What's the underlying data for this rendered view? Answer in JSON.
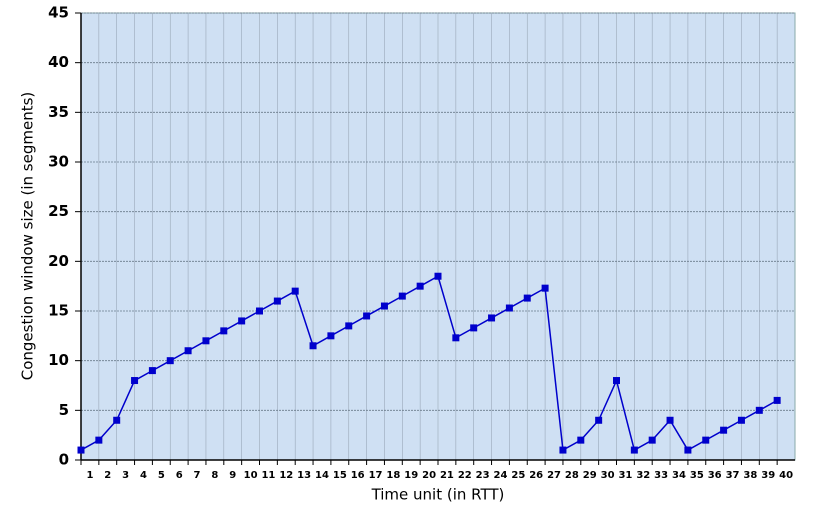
{
  "chart_data": {
    "type": "line",
    "x_label": "Time unit (in RTT)",
    "y_label": "Congestion window size (in segments)",
    "categories": [
      "1",
      "2",
      "3",
      "4",
      "5",
      "6",
      "7",
      "8",
      "9",
      "10",
      "11",
      "12",
      "13",
      "14",
      "15",
      "16",
      "17",
      "18",
      "19",
      "20",
      "21",
      "22",
      "23",
      "24",
      "25",
      "26",
      "27",
      "28",
      "29",
      "30",
      "31",
      "32",
      "33",
      "34",
      "35",
      "36",
      "37",
      "38",
      "39",
      "40"
    ],
    "series": [
      {
        "color": "#0000cc",
        "values": [
          1,
          2,
          4,
          8,
          9,
          10,
          11,
          12,
          13,
          14,
          15,
          16,
          17,
          11.5,
          12.5,
          13.5,
          14.5,
          15.5,
          16.5,
          17.5,
          18.5,
          12.3,
          13.3,
          14.3,
          15.3,
          16.3,
          17.3,
          1,
          2,
          4,
          8,
          1,
          2,
          4,
          1,
          2,
          3,
          4,
          5,
          6
        ]
      }
    ],
    "ylim": [
      0,
      45
    ],
    "yticks": [
      0,
      5,
      10,
      15,
      20,
      25,
      30,
      35,
      40,
      45
    ],
    "grid": true,
    "background": "#cfe0f3"
  }
}
